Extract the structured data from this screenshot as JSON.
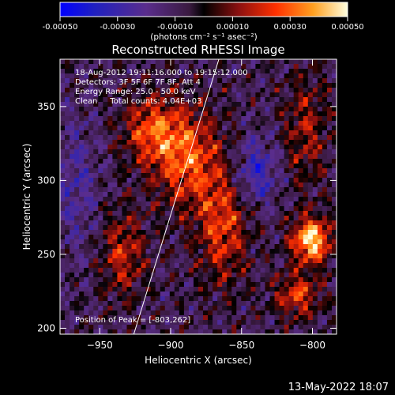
{
  "chart_data": {
    "type": "heatmap",
    "title": "Reconstructed RHESSI Image",
    "xlabel": "Heliocentric X (arcsec)",
    "ylabel": "Heliocentric Y (arcsec)",
    "xlim": [
      -978,
      -783
    ],
    "ylim": [
      196,
      382
    ],
    "x_ticks": [
      -950,
      -900,
      -850,
      -800
    ],
    "y_ticks": [
      200,
      250,
      300,
      350
    ],
    "colorbar": {
      "min": -0.0005,
      "max": 0.0005,
      "ticks": [
        -0.0005,
        -0.0003,
        -0.0001,
        0.0001,
        0.0003,
        0.0005
      ],
      "tick_labels": [
        "-0.00050",
        "-0.00030",
        "-0.00010",
        "0.00010",
        "0.00030",
        "0.00050"
      ],
      "unit_label": "(photons cm⁻² s⁻¹ asec⁻²)"
    },
    "annotations": [
      "18-Aug-2012 19:11:16.000 to 19:15:12.000",
      "Detectors: 3F 5F 6F 7F 8F, Att 4",
      "Energy Range: 25.0 - 50.0 keV",
      "Clean     Total counts: 4.04E+03",
      "Position of Peak = [-803,262]"
    ],
    "peak": {
      "x": -803,
      "y": 262
    },
    "limb_line": {
      "x1": -926,
      "y1": 196,
      "x2": -866,
      "y2": 382
    },
    "grid": false,
    "legend": "none"
  },
  "footer": {
    "timestamp": "13-May-2022 18:07"
  }
}
